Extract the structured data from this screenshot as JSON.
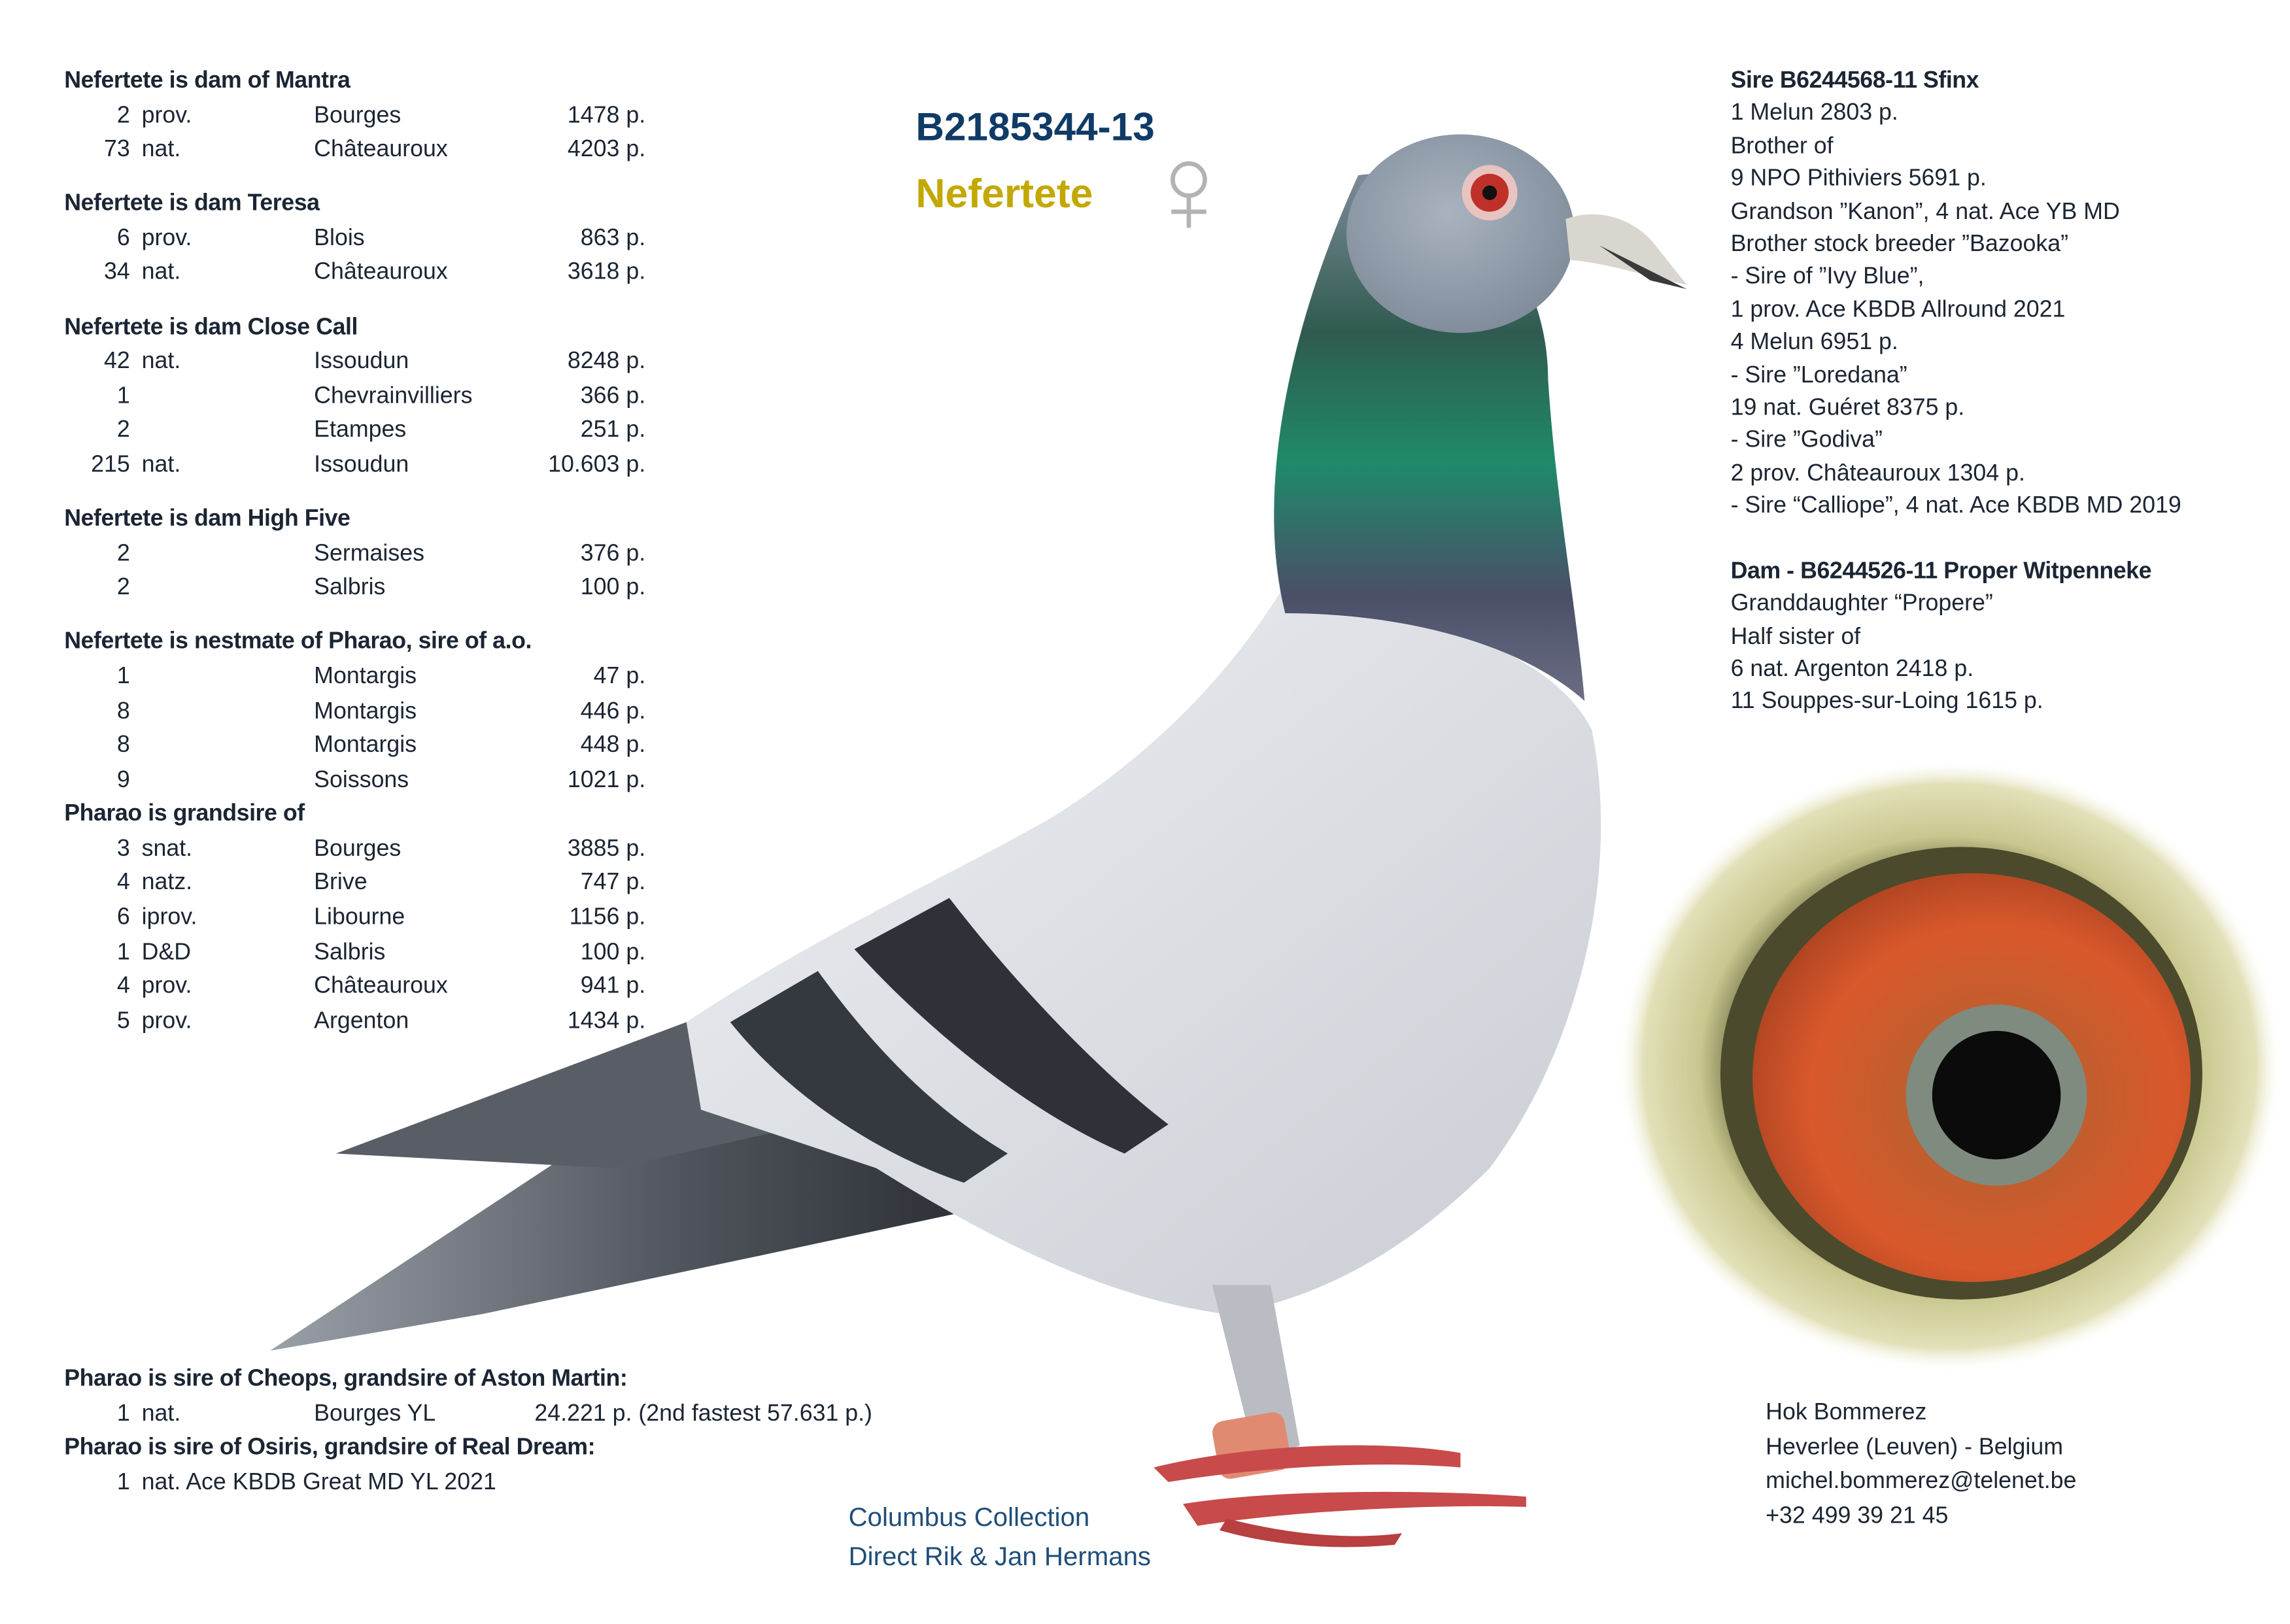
{
  "header": {
    "ring_number": "B2185344-13",
    "name": "Nefertete",
    "sex_icon": "female-symbol-icon",
    "ring_color": "#0f3b66",
    "name_color": "#c2a800"
  },
  "left": {
    "sections": [
      {
        "heading": "Nefertete is dam of Mantra",
        "rows": [
          {
            "place": "2",
            "type": "prov.",
            "race": "Bourges",
            "birds": "1478 p."
          },
          {
            "place": "73",
            "type": "nat.",
            "race": "Châteauroux",
            "birds": "4203 p."
          }
        ]
      },
      {
        "heading": "Nefertete is dam Teresa",
        "rows": [
          {
            "place": "6",
            "type": "prov.",
            "race": "Blois",
            "birds": "863 p."
          },
          {
            "place": "34",
            "type": "nat.",
            "race": "Châteauroux",
            "birds": "3618 p."
          }
        ]
      },
      {
        "heading": "Nefertete is dam Close Call",
        "rows": [
          {
            "place": "42",
            "type": "nat.",
            "race": "Issoudun",
            "birds": "8248 p."
          },
          {
            "place": "1",
            "type": "",
            "race": "Chevrainvilliers",
            "birds": "366 p."
          },
          {
            "place": "2",
            "type": "",
            "race": "Etampes",
            "birds": "251 p."
          },
          {
            "place": "215",
            "type": "nat.",
            "race": "Issoudun",
            "birds": "10.603 p."
          }
        ]
      },
      {
        "heading": "Nefertete is dam High Five",
        "rows": [
          {
            "place": "2",
            "type": "",
            "race": "Sermaises",
            "birds": "376 p."
          },
          {
            "place": "2",
            "type": "",
            "race": "Salbris",
            "birds": "100 p."
          }
        ]
      },
      {
        "heading": "Nefertete is nestmate of Pharao, sire of a.o.",
        "rows": [
          {
            "place": "1",
            "type": "",
            "race": "Montargis",
            "birds": "47 p."
          },
          {
            "place": "8",
            "type": "",
            "race": "Montargis",
            "birds": "446 p."
          },
          {
            "place": "8",
            "type": "",
            "race": "Montargis",
            "birds": "448 p."
          },
          {
            "place": "9",
            "type": "",
            "race": "Soissons",
            "birds": "1021 p."
          }
        ]
      },
      {
        "heading": "Pharao is grandsire of",
        "rows": [
          {
            "place": "3",
            "type": "snat.",
            "race": "Bourges",
            "birds": "3885 p."
          },
          {
            "place": "4",
            "type": "natz.",
            "race": "Brive",
            "birds": "747 p."
          },
          {
            "place": "6",
            "type": "iprov.",
            "race": "Libourne",
            "birds": "1156 p."
          },
          {
            "place": "1",
            "type": "D&D",
            "race": "Salbris",
            "birds": "100 p."
          },
          {
            "place": "4",
            "type": "prov.",
            "race": "Châteauroux",
            "birds": "941 p."
          },
          {
            "place": "5",
            "type": "prov.",
            "race": "Argenton",
            "birds": "1434 p."
          }
        ]
      }
    ]
  },
  "bottom": {
    "heading1": "Pharao is sire of Cheops, grandsire of Aston Martin:",
    "row1": {
      "place": "1",
      "type": "nat.",
      "race": "Bourges YL",
      "birds": "24.221 p. (2nd fastest 57.631 p.)"
    },
    "heading2": "Pharao is sire of Osiris, grandsire of Real Dream:",
    "row2": {
      "place": "1",
      "text": "nat. Ace KBDB Great MD  YL 2021"
    }
  },
  "right": {
    "sire_heading": "Sire B6244568-11 Sfinx",
    "sire_lines": [
      "1 Melun 2803 p.",
      "Brother of",
      "9 NPO Pithiviers 5691 p.",
      "Grandson ”Kanon”, 4 nat. Ace YB MD",
      "Brother stock breeder ”Bazooka”",
      "- Sire of ”Ivy Blue”,",
      "1 prov. Ace KBDB Allround 2021",
      "4 Melun 6951 p.",
      "- Sire ”Loredana”",
      "19 nat. Guéret 8375 p.",
      "- Sire ”Godiva”",
      "2 prov. Châteauroux 1304 p.",
      "- Sire “Calliope”, 4 nat. Ace KBDB MD 2019"
    ],
    "dam_heading": "Dam - B6244526-11 Proper Witpenneke",
    "dam_lines": [
      "Granddaughter “Propere”",
      "Half sister of",
      "6 nat. Argenton 2418 p.",
      "11 Souppes-sur-Loing 1615 p."
    ]
  },
  "contact": {
    "loft": "Hok Bommerez",
    "location": "Heverlee (Leuven) - Belgium",
    "email": "michel.bommerez@telenet.be",
    "phone": "+32 499 39 21 45"
  },
  "collection": {
    "line1": "Columbus Collection",
    "line2": "Direct Rik & Jan Hermans"
  }
}
